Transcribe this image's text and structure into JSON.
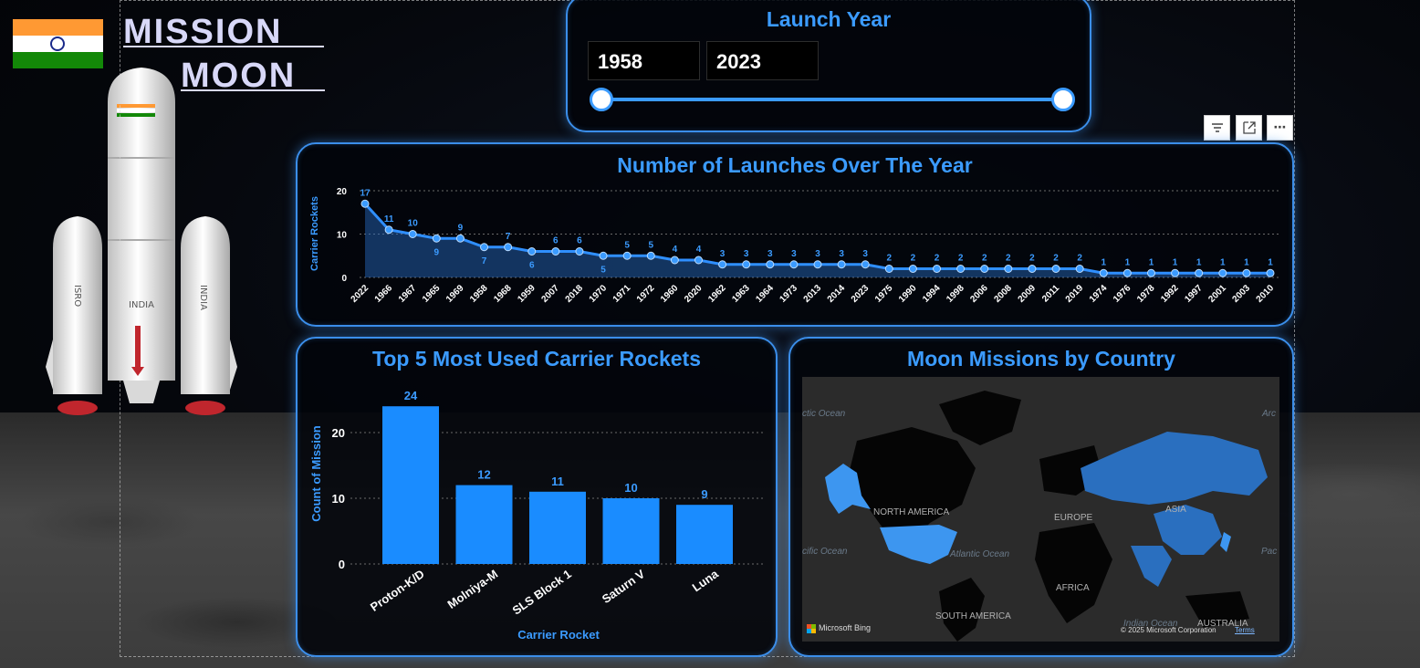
{
  "brand": {
    "line1": "MISSION",
    "line2": "MOON"
  },
  "rocket_markings": {
    "isro": "ISRO",
    "india": "INDIA"
  },
  "slicer": {
    "title": "Launch Year",
    "start": "1958",
    "end": "2023"
  },
  "toolbar": {
    "filter_icon": "filter-icon",
    "focus_icon": "focus-mode-icon",
    "more_label": "⋯"
  },
  "line_chart": {
    "title": "Number of Launches Over The Year",
    "ylabel": "Carrier Rockets",
    "ytick_labels": [
      "0",
      "10",
      "20"
    ]
  },
  "bar_chart": {
    "title": "Top 5 Most Used Carrier Rockets",
    "ylabel": "Count of Mission",
    "xlabel": "Carrier Rocket",
    "ytick_labels": [
      "0",
      "10",
      "20"
    ]
  },
  "map": {
    "title": "Moon Missions by Country",
    "labels": {
      "north_america": "NORTH AMERICA",
      "europe": "EUROPE",
      "asia": "ASIA",
      "africa": "AFRICA",
      "south_america": "SOUTH AMERICA",
      "australia": "AUSTRALIA",
      "arctic1": "ctic Ocean",
      "arctic2": "Arc",
      "pacific1": "cific Ocean",
      "pacific2": "Pac",
      "atlantic": "Atlantic Ocean",
      "indian": "Indian Ocean"
    },
    "attribution": "Microsoft Bing",
    "copyright": "© 2025 Microsoft Corporation",
    "terms": "Terms",
    "colors": {
      "highlight_light": "#3d96f0",
      "highlight_dark": "#2a6fbf",
      "land": "#050505",
      "water": "#2b2b2b"
    }
  },
  "colors": {
    "accent": "#3b9bff",
    "bar": "#1a8cff",
    "panel_border": "#3b8eea"
  },
  "chart_data": [
    {
      "type": "area",
      "title": "Number of Launches Over The Year",
      "xlabel": "",
      "ylabel": "Carrier Rockets",
      "ylim": [
        0,
        20
      ],
      "grid": true,
      "categories": [
        "2022",
        "1966",
        "1967",
        "1965",
        "1969",
        "1958",
        "1968",
        "1959",
        "2007",
        "2018",
        "1970",
        "1971",
        "1972",
        "1960",
        "2020",
        "1962",
        "1963",
        "1964",
        "1973",
        "2013",
        "2014",
        "2023",
        "1975",
        "1990",
        "1994",
        "1998",
        "2006",
        "2008",
        "2009",
        "2011",
        "2019",
        "1974",
        "1976",
        "1978",
        "1992",
        "1997",
        "2001",
        "2003",
        "2010"
      ],
      "values": [
        17,
        11,
        10,
        9,
        9,
        7,
        7,
        6,
        6,
        6,
        5,
        5,
        5,
        4,
        4,
        3,
        3,
        3,
        3,
        3,
        3,
        3,
        2,
        2,
        2,
        2,
        2,
        2,
        2,
        2,
        2,
        1,
        1,
        1,
        1,
        1,
        1,
        1,
        1
      ]
    },
    {
      "type": "bar",
      "title": "Top 5 Most Used Carrier Rockets",
      "xlabel": "Carrier Rocket",
      "ylabel": "Count of Mission",
      "ylim": [
        0,
        25
      ],
      "grid": true,
      "categories": [
        "Proton-K/D",
        "Molniya-M",
        "SLS Block 1",
        "Saturn V",
        "Luna"
      ],
      "values": [
        24,
        12,
        11,
        10,
        9
      ]
    }
  ]
}
